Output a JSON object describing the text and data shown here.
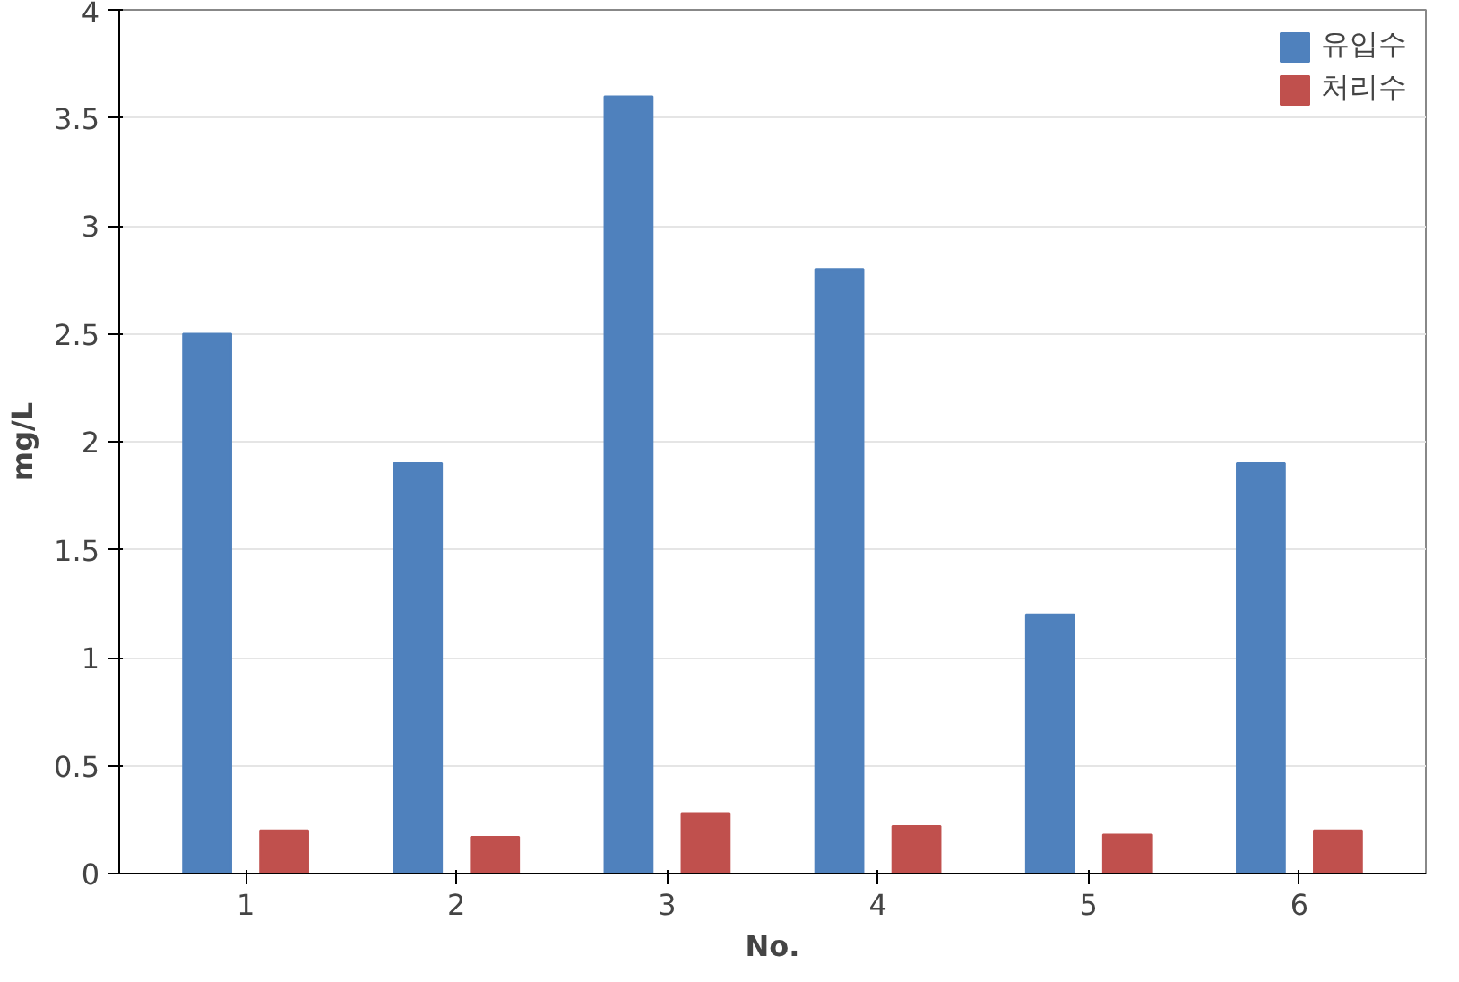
{
  "chart_data": {
    "type": "bar",
    "xlabel": "No.",
    "ylabel": "mg/L",
    "categories": [
      "1",
      "2",
      "3",
      "4",
      "5",
      "6"
    ],
    "series": [
      {
        "name": "유입수",
        "color": "#4f81bd",
        "values": [
          2.5,
          1.9,
          3.6,
          2.8,
          1.2,
          1.9
        ]
      },
      {
        "name": "처리수",
        "color": "#c0504d",
        "values": [
          0.2,
          0.17,
          0.28,
          0.22,
          0.18,
          0.2
        ]
      }
    ],
    "ylim": [
      0,
      4
    ],
    "yticks": [
      0,
      0.5,
      1,
      1.5,
      2,
      2.5,
      3,
      3.5,
      4
    ],
    "grid": "y",
    "legend": "top right"
  }
}
